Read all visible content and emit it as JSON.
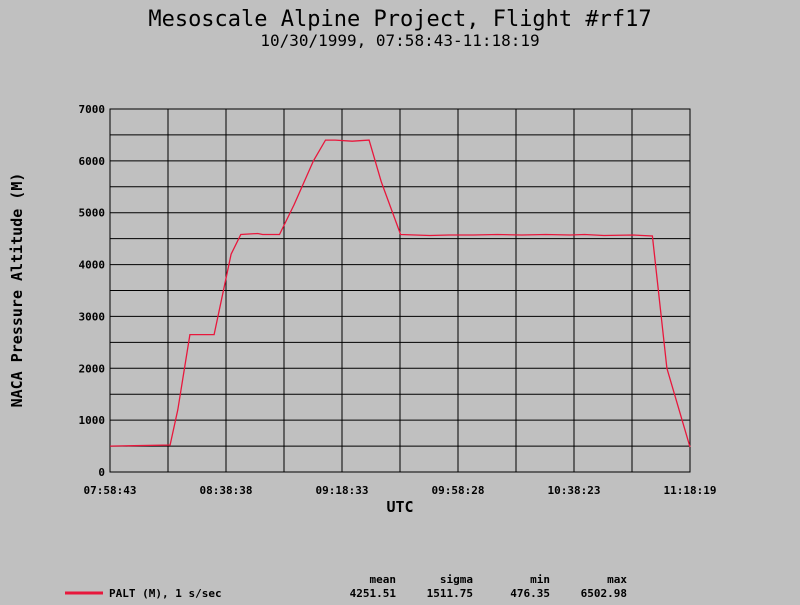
{
  "chart_data": {
    "type": "line",
    "title": "Mesoscale Alpine Project, Flight #rf17",
    "subtitle": "10/30/1999, 07:58:43-11:18:19",
    "xlabel": "UTC",
    "ylabel": "NACA Pressure Altitude (M)",
    "x_tick_labels": [
      "07:58:43",
      "08:38:38",
      "09:18:33",
      "09:58:28",
      "10:38:23",
      "11:18:19"
    ],
    "y_tick_labels": [
      "0",
      "1000",
      "2000",
      "3000",
      "4000",
      "5000",
      "6000",
      "7000"
    ],
    "ylim": [
      0,
      7000
    ],
    "xlim_seconds_from_start": [
      0,
      11976
    ],
    "grid": true,
    "line_color": "#e8173c",
    "series": [
      {
        "name": "PALT (M), 1 s/sec",
        "x_elapsed_seconds": [
          0,
          1240,
          1400,
          1650,
          1900,
          2150,
          2500,
          2700,
          3050,
          3150,
          3500,
          3800,
          4200,
          4450,
          4650,
          5000,
          5350,
          5600,
          6000,
          6300,
          6600,
          7000,
          7500,
          8000,
          8500,
          9000,
          9500,
          9800,
          10200,
          10800,
          11200,
          11500,
          11976
        ],
        "y": [
          500,
          520,
          1200,
          2650,
          2650,
          2650,
          4200,
          4580,
          4600,
          4580,
          4580,
          5150,
          6000,
          6400,
          6400,
          6380,
          6400,
          5600,
          4580,
          4570,
          4560,
          4570,
          4570,
          4580,
          4570,
          4580,
          4570,
          4580,
          4560,
          4570,
          4550,
          2000,
          480
        ]
      }
    ]
  },
  "legend": {
    "label": "PALT (M), 1 s/sec",
    "stats_headers": [
      "mean",
      "sigma",
      "min",
      "max"
    ],
    "stats_values": [
      "4251.51",
      "1511.75",
      "476.35",
      "6502.98"
    ]
  }
}
